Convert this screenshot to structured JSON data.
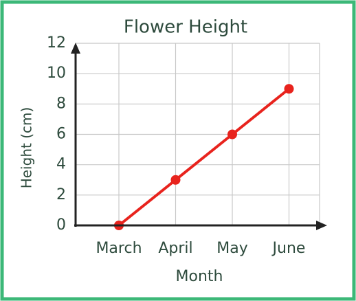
{
  "chart_data": {
    "type": "line",
    "title": "Flower Height",
    "x_label": "Month",
    "y_label": "Height (cm)",
    "categories": [
      "March",
      "April",
      "May",
      "June"
    ],
    "series": [
      {
        "name": "Height",
        "color": "#e8231d",
        "values": [
          0,
          3,
          6,
          9
        ]
      }
    ],
    "ylim": [
      0,
      12
    ],
    "yticks": [
      0,
      2,
      4,
      6,
      8,
      10,
      12
    ],
    "grid": true
  }
}
